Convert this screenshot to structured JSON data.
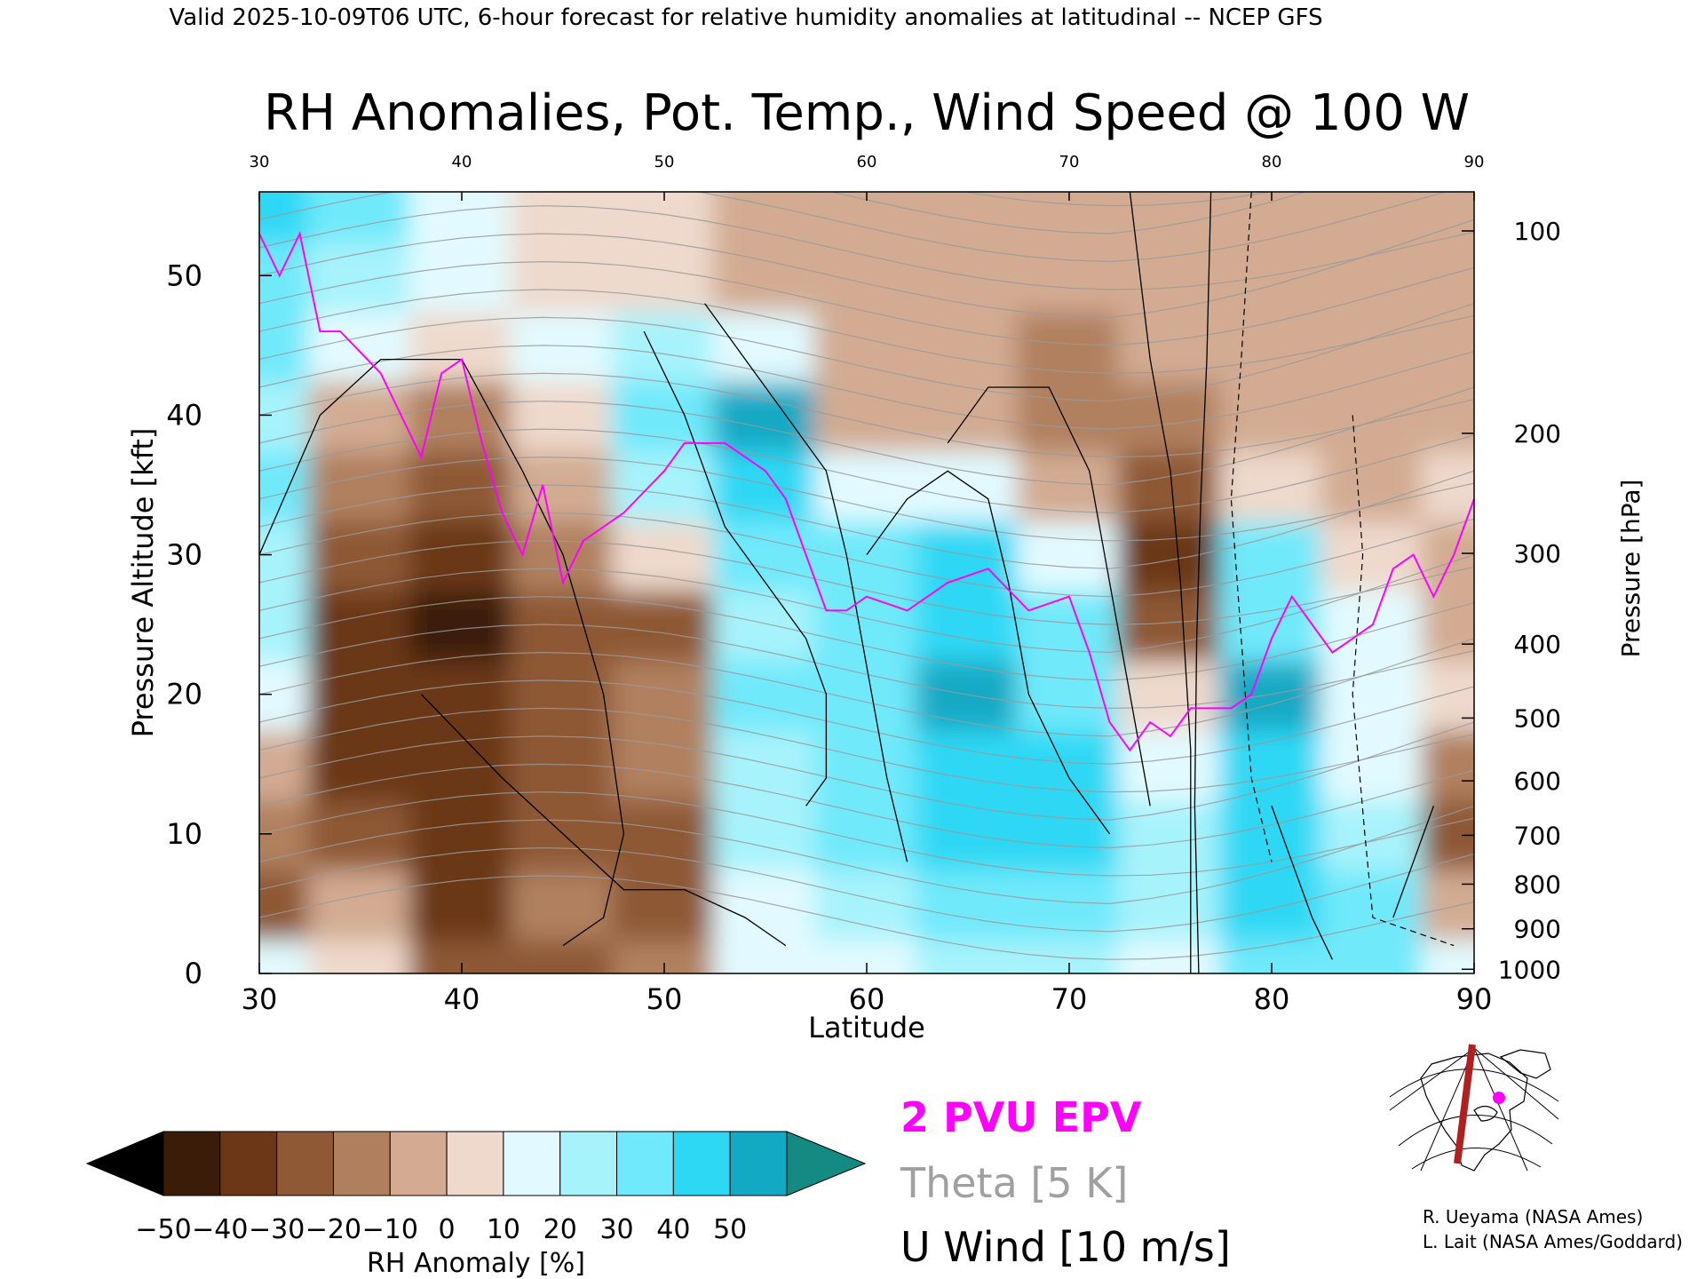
{
  "header": {
    "valid_line": "Valid 2025-10-09T06 UTC, 6-hour forecast for relative humidity anomalies at latitudinal -- NCEP GFS"
  },
  "chart_data": {
    "type": "heatmap",
    "title": "RH Anomalies, Pot. Temp., Wind Speed @ 100 W",
    "xlabel": "Latitude",
    "ylabel": "Pressure Altitude [kft]",
    "ylabel_right": "Pressure [hPa]",
    "xlim": [
      30,
      90
    ],
    "ylim": [
      0,
      56
    ],
    "x_ticks": [
      "30",
      "40",
      "50",
      "60",
      "70",
      "80",
      "90"
    ],
    "y_ticks": [
      "0",
      "10",
      "20",
      "30",
      "40",
      "50"
    ],
    "y_tick_values": [
      0,
      10,
      20,
      30,
      40,
      50
    ],
    "pressure_ticks": [
      {
        "label": "100",
        "kft": 53.2
      },
      {
        "label": "200",
        "kft": 38.7
      },
      {
        "label": "300",
        "kft": 30.1
      },
      {
        "label": "400",
        "kft": 23.6
      },
      {
        "label": "500",
        "kft": 18.3
      },
      {
        "label": "600",
        "kft": 13.8
      },
      {
        "label": "700",
        "kft": 9.9
      },
      {
        "label": "800",
        "kft": 6.4
      },
      {
        "label": "900",
        "kft": 3.2
      },
      {
        "label": "1000",
        "kft": 0.3
      }
    ],
    "rh_anomaly": {
      "x": [
        30,
        35,
        40,
        45,
        50,
        55,
        60,
        65,
        70,
        75,
        80,
        85,
        90
      ],
      "y": [
        0,
        5,
        10,
        15,
        20,
        25,
        30,
        35,
        40,
        45,
        50,
        55
      ],
      "z": [
        [
          10,
          0,
          -30,
          -30,
          -20,
          10,
          10,
          20,
          20,
          10,
          30,
          30,
          10
        ],
        [
          -30,
          -10,
          -40,
          -20,
          -30,
          10,
          20,
          30,
          30,
          20,
          40,
          30,
          -10
        ],
        [
          -20,
          -30,
          -40,
          -30,
          -30,
          20,
          30,
          40,
          40,
          20,
          40,
          20,
          -30
        ],
        [
          -10,
          -40,
          -40,
          -30,
          -20,
          20,
          30,
          40,
          40,
          10,
          40,
          10,
          -20
        ],
        [
          10,
          -40,
          -40,
          -30,
          -20,
          30,
          30,
          50,
          30,
          0,
          50,
          10,
          0
        ],
        [
          20,
          -40,
          -50,
          -30,
          -30,
          20,
          30,
          40,
          30,
          -30,
          30,
          10,
          -10
        ],
        [
          20,
          -30,
          -40,
          -20,
          0,
          30,
          30,
          40,
          10,
          -40,
          30,
          0,
          -10
        ],
        [
          30,
          -20,
          -30,
          -10,
          20,
          40,
          10,
          10,
          -10,
          -30,
          0,
          -10,
          0
        ],
        [
          20,
          -10,
          -20,
          0,
          30,
          50,
          -10,
          -10,
          -20,
          -20,
          -10,
          -10,
          -10
        ],
        [
          30,
          10,
          0,
          10,
          20,
          10,
          -10,
          -10,
          -20,
          -10,
          -10,
          -10,
          -10
        ],
        [
          30,
          20,
          10,
          0,
          0,
          -10,
          -10,
          -10,
          -10,
          -10,
          -10,
          -10,
          -10
        ],
        [
          40,
          30,
          10,
          0,
          0,
          -10,
          -10,
          -10,
          -10,
          -10,
          -10,
          -10,
          -10
        ]
      ]
    },
    "epv_2pvu": {
      "lat": [
        30,
        31,
        32,
        33,
        34,
        36,
        37,
        38,
        39,
        40,
        41,
        42,
        43,
        44,
        45,
        46,
        48,
        50,
        51,
        53,
        55,
        56,
        57,
        58,
        59,
        60,
        62,
        64,
        66,
        68,
        70,
        71,
        72,
        73,
        74,
        75,
        76,
        78,
        79,
        80,
        81,
        82,
        83,
        84,
        85,
        86,
        87,
        88,
        89,
        90
      ],
      "kft": [
        53,
        50,
        53,
        46,
        46,
        43,
        40,
        37,
        43,
        44,
        38,
        33,
        30,
        35,
        28,
        31,
        33,
        36,
        38,
        38,
        36,
        34,
        30,
        26,
        26,
        27,
        26,
        28,
        29,
        26,
        27,
        23,
        18,
        16,
        18,
        17,
        19,
        19,
        20,
        24,
        27,
        25,
        23,
        24,
        25,
        29,
        30,
        27,
        30,
        34
      ]
    },
    "theta_contours_k": [
      "290",
      "300",
      "310",
      "320",
      "330",
      "340",
      "350",
      "360",
      "370",
      "380",
      "390",
      "400",
      "410",
      "420"
    ],
    "u_wind_contours": [
      "0",
      "10",
      "30"
    ],
    "legend": {
      "epv": "2 PVU EPV",
      "theta": "Theta [5 K]",
      "uwind": "U Wind [10 m/s]",
      "epv_color": "#ff00ff",
      "theta_color": "#a0a0a0",
      "uwind_color": "#000000"
    },
    "colorbar": {
      "label": "RH Anomaly [%]",
      "ticks": [
        "−50",
        "−40",
        "−30",
        "−20",
        "−10",
        "0",
        "10",
        "20",
        "30",
        "40",
        "50"
      ],
      "colors": [
        "#000000",
        "#3b1c08",
        "#6b3716",
        "#8e5934",
        "#b0805e",
        "#d2ab92",
        "#eed9cc",
        "#e2faff",
        "#a7f3fc",
        "#6fe9fb",
        "#2dd8f4",
        "#12a9c4",
        "#138a82"
      ]
    }
  },
  "credits": {
    "line1": "R. Ueyama (NASA Ames)",
    "line2": "L. Lait (NASA Ames/Goddard)"
  },
  "map": {
    "icon": "north-america-polar-map-icon",
    "transect_color": "#b02020",
    "marker_color": "#ff00ff"
  }
}
